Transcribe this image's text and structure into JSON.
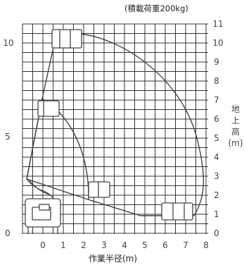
{
  "load_note": "(積載荷重200kg)",
  "x_axis": {
    "title": "作業半径(m)",
    "ticks": [
      "0",
      "1",
      "2",
      "3",
      "4",
      "5",
      "6",
      "7",
      "8"
    ]
  },
  "left_axis": {
    "ticks": [
      "0",
      "5",
      "10"
    ]
  },
  "right_axis": {
    "ticks": [
      "0",
      "1",
      "2",
      "3",
      "4",
      "5",
      "6",
      "7",
      "8",
      "9",
      "10",
      "11"
    ]
  },
  "height_label": {
    "chars": [
      "地",
      "上",
      "高"
    ],
    "unit": "(m)"
  },
  "colors": {
    "grid": "#333333",
    "stroke": "#444444",
    "background": "#ffffff"
  }
}
